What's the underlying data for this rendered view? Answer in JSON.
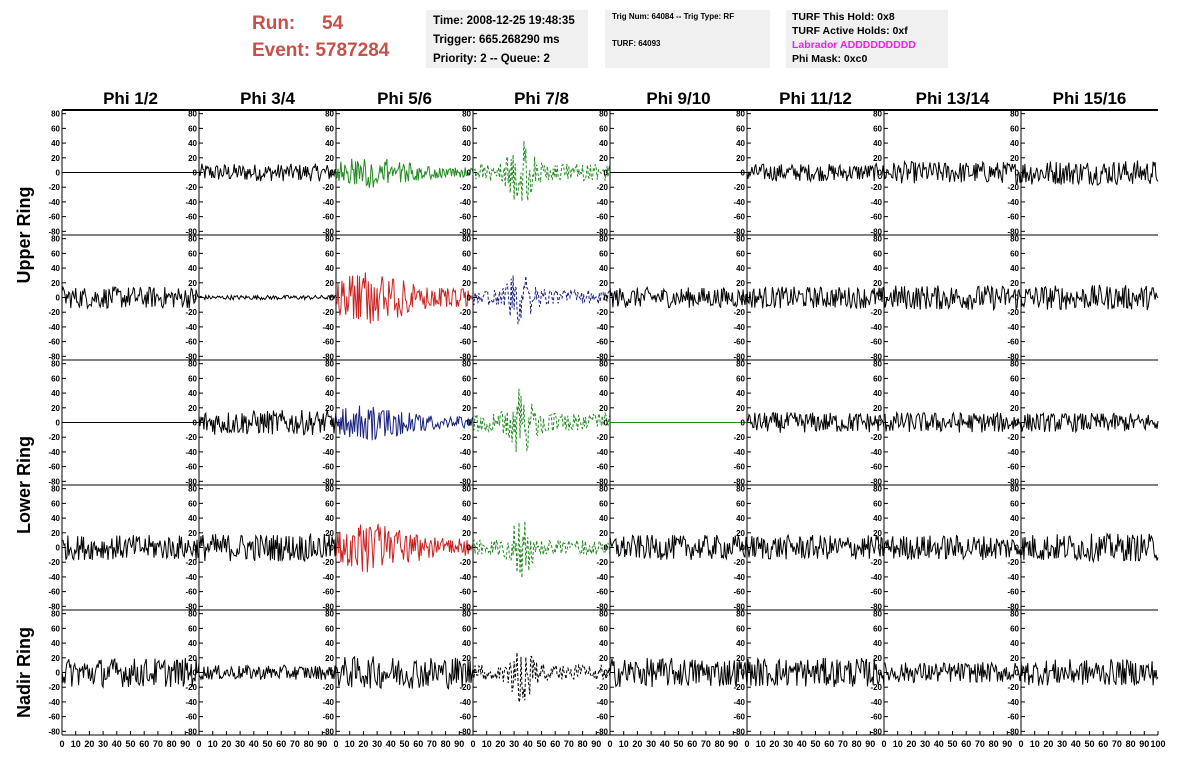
{
  "header": {
    "run_label": "Run:",
    "run_value": "54",
    "event_label": "Event:",
    "event_value": "5787284"
  },
  "info_time": {
    "time": "Time: 2008-12-25 19:48:35",
    "trigger": "Trigger: 665.268290 ms",
    "priority": "Priority: 2 -- Queue: 2"
  },
  "info_trig": {
    "trig": "Trig Num: 64084 -- Trig Type: RF",
    "turf": "TURF: 64093"
  },
  "info_turf": {
    "this_hold": "TURF This Hold: 0x8",
    "active_holds": "TURF Active Holds: 0xf",
    "labrador": "Labrador ADDDDDDDDD",
    "labrador_color": "#ee22ee",
    "phi_mask": "Phi Mask: 0xc0"
  },
  "chart_data": {
    "type": "line",
    "columns": [
      "Phi 1/2",
      "Phi 3/4",
      "Phi 5/6",
      "Phi 7/8",
      "Phi 9/10",
      "Phi 11/12",
      "Phi 13/14",
      "Phi 15/16"
    ],
    "ring_labels": [
      {
        "label": "Upper Ring",
        "rows": [
          0,
          1
        ]
      },
      {
        "label": "Lower Ring",
        "rows": [
          2,
          3
        ]
      },
      {
        "label": "Nadir Ring",
        "rows": [
          4
        ]
      }
    ],
    "ylim": [
      -85,
      85
    ],
    "yticks": [
      -80,
      -60,
      -40,
      -20,
      0,
      20,
      40,
      60,
      80
    ],
    "xlim": [
      0,
      100
    ],
    "xticks": [
      0,
      10,
      20,
      30,
      40,
      50,
      60,
      70,
      80,
      90,
      100
    ],
    "panels": [
      [
        {
          "color": "#000000",
          "style": "flat",
          "amp": 0
        },
        {
          "color": "#000000",
          "style": "noise",
          "amp": 12
        },
        {
          "color": "#228b22",
          "style": "burst",
          "amp": 24
        },
        {
          "color": "#228b22",
          "style": "dashed-spike",
          "amp": 48
        },
        {
          "color": "#000000",
          "style": "flat",
          "amp": 0
        },
        {
          "color": "#000000",
          "style": "noise",
          "amp": 12
        },
        {
          "color": "#000000",
          "style": "noise",
          "amp": 15
        },
        {
          "color": "#000000",
          "style": "noise",
          "amp": 17
        }
      ],
      [
        {
          "color": "#000000",
          "style": "noise",
          "amp": 15
        },
        {
          "color": "#000000",
          "style": "noise",
          "amp": 3
        },
        {
          "color": "#cc2222",
          "style": "burst",
          "amp": 40
        },
        {
          "color": "#1a237e",
          "style": "dashed-spike",
          "amp": 42
        },
        {
          "color": "#000000",
          "style": "noise",
          "amp": 14
        },
        {
          "color": "#000000",
          "style": "noise",
          "amp": 15
        },
        {
          "color": "#000000",
          "style": "noise",
          "amp": 17
        },
        {
          "color": "#000000",
          "style": "noise",
          "amp": 17
        }
      ],
      [
        {
          "color": "#000000",
          "style": "flat",
          "amp": 0
        },
        {
          "color": "#000000",
          "style": "noise",
          "amp": 17
        },
        {
          "color": "#1a237e",
          "style": "burst",
          "amp": 27
        },
        {
          "color": "#228b22",
          "style": "dashed-spike",
          "amp": 50
        },
        {
          "color": "#228b22",
          "style": "flat",
          "amp": 0
        },
        {
          "color": "#000000",
          "style": "noise",
          "amp": 14
        },
        {
          "color": "#000000",
          "style": "noise",
          "amp": 14
        },
        {
          "color": "#000000",
          "style": "noise",
          "amp": 13
        }
      ],
      [
        {
          "color": "#000000",
          "style": "noise",
          "amp": 17
        },
        {
          "color": "#000000",
          "style": "noise",
          "amp": 19
        },
        {
          "color": "#cc2222",
          "style": "burst",
          "amp": 40
        },
        {
          "color": "#228b22",
          "style": "dashed-spike",
          "amp": 42
        },
        {
          "color": "#000000",
          "style": "noise",
          "amp": 17
        },
        {
          "color": "#000000",
          "style": "noise",
          "amp": 17
        },
        {
          "color": "#000000",
          "style": "noise",
          "amp": 17
        },
        {
          "color": "#000000",
          "style": "noise",
          "amp": 19
        }
      ],
      [
        {
          "color": "#000000",
          "style": "noise",
          "amp": 20
        },
        {
          "color": "#000000",
          "style": "noise",
          "amp": 10
        },
        {
          "color": "#000000",
          "style": "noise",
          "amp": 22
        },
        {
          "color": "#000000",
          "style": "dashed-spike",
          "amp": 44
        },
        {
          "color": "#000000",
          "style": "noise",
          "amp": 20
        },
        {
          "color": "#000000",
          "style": "noise",
          "amp": 20
        },
        {
          "color": "#000000",
          "style": "noise",
          "amp": 14
        },
        {
          "color": "#000000",
          "style": "noise",
          "amp": 18
        }
      ]
    ]
  }
}
